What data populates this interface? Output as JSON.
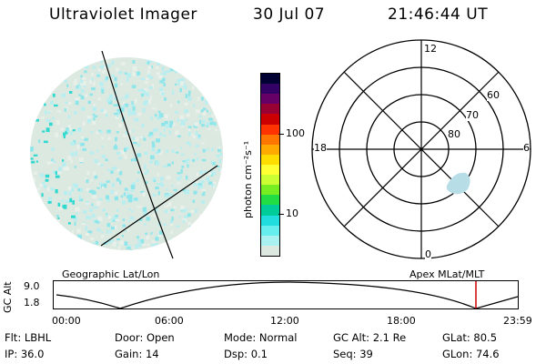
{
  "header": {
    "instrument": "Ultraviolet Imager",
    "date": "30 Jul 07",
    "time": "21:46:44 UT"
  },
  "colorbar": {
    "unit_label": "photon cm⁻²s⁻¹",
    "ticks": [
      "100",
      "10"
    ],
    "colors": [
      "#000033",
      "#330066",
      "#660066",
      "#990033",
      "#cc0000",
      "#ff3300",
      "#ff7700",
      "#ffaa00",
      "#ffdd00",
      "#ffff33",
      "#ccff33",
      "#77ee22",
      "#22dd44",
      "#00cc99",
      "#22dddd",
      "#66eeee",
      "#aaf2f2",
      "#dde8e0"
    ]
  },
  "left_panel": {
    "caption": "Geographic Lat/Lon"
  },
  "right_panel": {
    "caption": "Apex MLat/MLT",
    "mlt_labels": {
      "top": "12",
      "left": "18",
      "right": "6",
      "bottom": "0"
    },
    "lat_labels": [
      "60",
      "70",
      "80"
    ]
  },
  "orbit_plot": {
    "axis_label": "GC Alt",
    "y_ticks": [
      "9.0",
      "1.8"
    ],
    "x_ticks": [
      "00:00",
      "06:00",
      "12:00",
      "18:00",
      "23:59"
    ],
    "current_time_color": "#cc0000"
  },
  "info": {
    "row1": [
      {
        "label": "Flt:",
        "value": "LBHL"
      },
      {
        "label": "Door:",
        "value": "Open"
      },
      {
        "label": "Mode:",
        "value": "Normal"
      },
      {
        "label": "GC Alt:",
        "value": "2.1 Re"
      },
      {
        "label": "GLat:",
        "value": "80.5"
      }
    ],
    "row2": [
      {
        "label": "IP:",
        "value": "36.0"
      },
      {
        "label": "Gain:",
        "value": "14"
      },
      {
        "label": "Dsp:",
        "value": "0.1"
      },
      {
        "label": "Seq:",
        "value": "39"
      },
      {
        "label": "GLon:",
        "value": "74.6"
      }
    ]
  }
}
